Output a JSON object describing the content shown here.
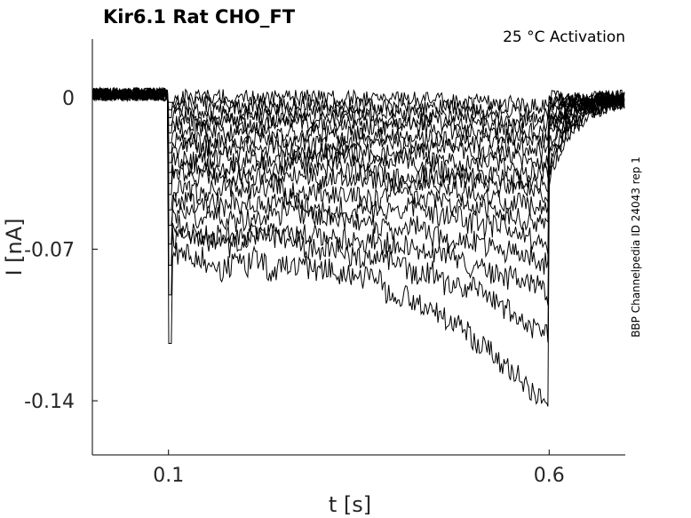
{
  "chart_data": {
    "type": "line",
    "title": "Kir6.1  Rat  CHO_FT",
    "annotation": "25 °C  Activation",
    "side_note": "BBP Channelpedia ID 24043 rep 1",
    "xlabel": "t [s]",
    "ylabel": "I [nA]",
    "xlim": [
      0.0,
      0.7
    ],
    "ylim": [
      -0.165,
      0.027
    ],
    "x_ticks": [
      0.1,
      0.6
    ],
    "x_tick_labels": [
      "0.1",
      "0.6"
    ],
    "y_ticks": [
      0,
      -0.07,
      -0.14
    ],
    "y_tick_labels": [
      "0",
      "-0.07",
      "-0.14"
    ],
    "grid": false,
    "pulse": {
      "start": 0.1,
      "end": 0.6
    },
    "series_steady_levels": [
      0.0,
      -0.003,
      -0.006,
      -0.009,
      -0.012,
      -0.016,
      -0.02,
      -0.024,
      -0.028,
      -0.032,
      -0.036,
      -0.042,
      -0.048,
      -0.055,
      -0.062,
      -0.068,
      -0.075
    ],
    "series_peak_levels": [
      -0.004,
      -0.008,
      -0.012,
      -0.016,
      -0.02,
      -0.025,
      -0.03,
      -0.035,
      -0.04,
      -0.046,
      -0.052,
      -0.06,
      -0.068,
      -0.078,
      -0.09,
      -0.11,
      -0.145
    ],
    "series_color": "#000000"
  }
}
